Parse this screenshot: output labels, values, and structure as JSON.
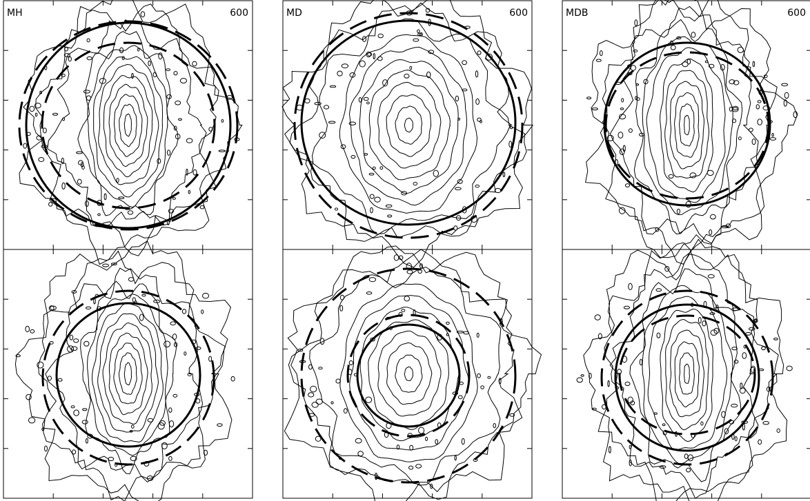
{
  "figure": {
    "columns": [
      {
        "label": "MH",
        "scale": "600"
      },
      {
        "label": "MD",
        "scale": "600"
      },
      {
        "label": "MDB",
        "scale": "600"
      }
    ],
    "panels": [
      {
        "id": "mh-top",
        "col": 0,
        "row": 0,
        "contours": 12,
        "shape": "bar",
        "noise": 1.0
      },
      {
        "id": "md-top",
        "col": 1,
        "row": 0,
        "contours": 11,
        "shape": "ellipse",
        "noise": 0.9
      },
      {
        "id": "mdb-top",
        "col": 2,
        "row": 0,
        "contours": 12,
        "shape": "peanut",
        "noise": 1.0
      },
      {
        "id": "mh-bot",
        "col": 0,
        "row": 1,
        "contours": 12,
        "shape": "bar",
        "noise": 1.0
      },
      {
        "id": "md-bot",
        "col": 1,
        "row": 1,
        "contours": 11,
        "shape": "ellipse",
        "noise": 0.9
      },
      {
        "id": "mdb-bot",
        "col": 2,
        "row": 1,
        "contours": 12,
        "shape": "peanut",
        "noise": 1.0
      }
    ]
  }
}
